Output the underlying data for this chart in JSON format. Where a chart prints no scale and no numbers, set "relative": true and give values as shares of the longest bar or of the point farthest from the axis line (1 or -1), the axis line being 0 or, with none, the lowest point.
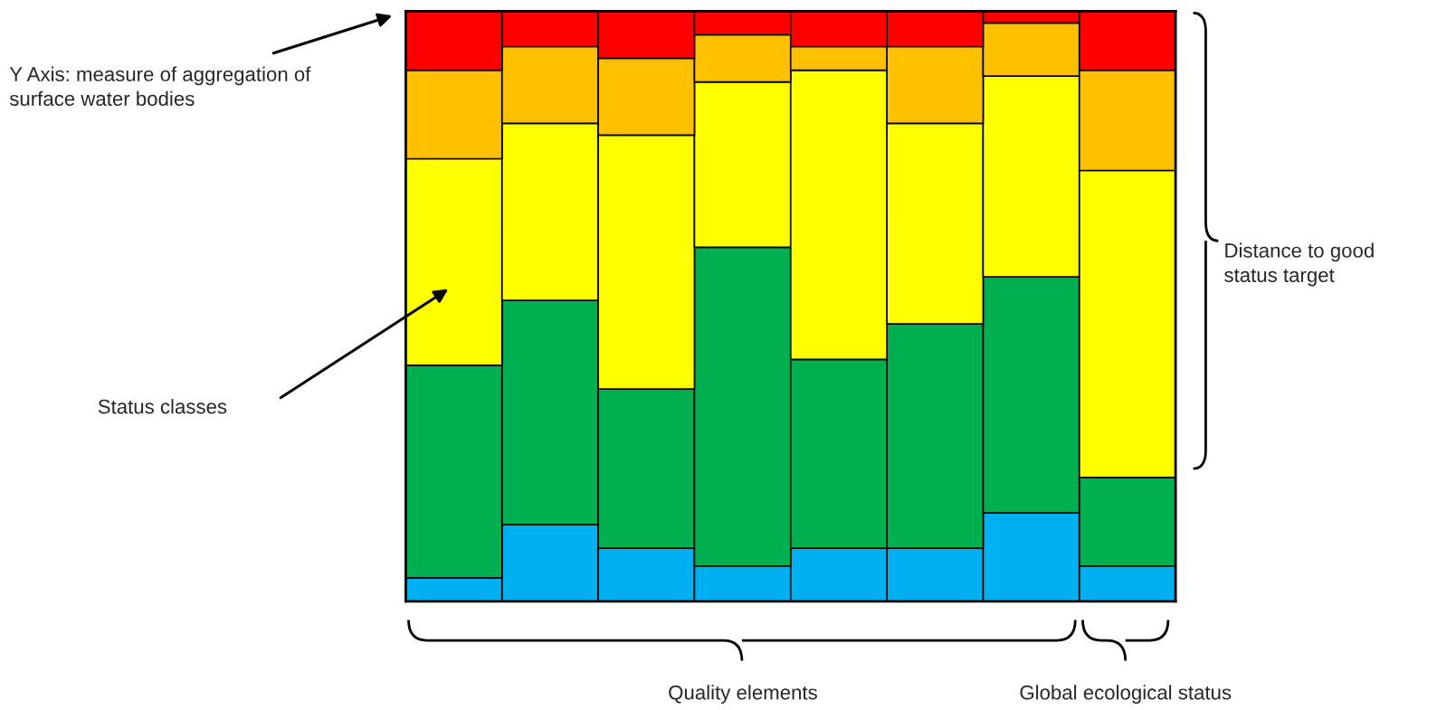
{
  "chart_data": {
    "type": "bar",
    "relative": true,
    "stacked": true,
    "categories": [
      null,
      null,
      null,
      null,
      null,
      null,
      null,
      null
    ],
    "series": [
      {
        "color": "#00b0f0",
        "values": [
          0.04,
          0.13,
          0.09,
          0.06,
          0.09,
          0.09,
          0.15,
          0.06
        ]
      },
      {
        "color": "#00b050",
        "values": [
          0.36,
          0.38,
          0.27,
          0.54,
          0.32,
          0.38,
          0.4,
          0.15
        ]
      },
      {
        "color": "#ffff00",
        "values": [
          0.35,
          0.3,
          0.43,
          0.28,
          0.49,
          0.34,
          0.34,
          0.52
        ]
      },
      {
        "color": "#ffc000",
        "values": [
          0.15,
          0.13,
          0.13,
          0.08,
          0.04,
          0.13,
          0.09,
          0.17
        ]
      },
      {
        "color": "#ff0000",
        "values": [
          0.1,
          0.06,
          0.08,
          0.04,
          0.06,
          0.06,
          0.02,
          0.1
        ]
      }
    ],
    "annotations": [
      "Y Axis: measure of aggregation of\nsurface water bodies",
      "Status classes",
      "Distance to good\nstatus target",
      "Quality elements",
      "Global ecological status"
    ]
  }
}
